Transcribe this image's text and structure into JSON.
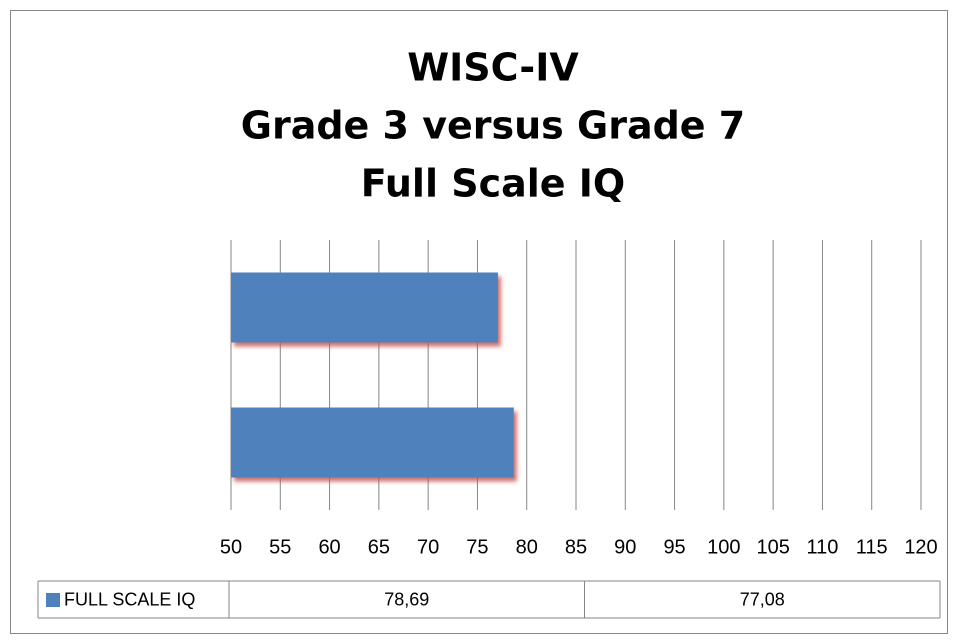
{
  "chart_data": {
    "type": "bar",
    "orientation": "horizontal",
    "title": [
      "WISC-IV",
      "Grade 3 versus Grade 7",
      "Full Scale IQ"
    ],
    "categories": [
      null,
      null
    ],
    "series": [
      {
        "name": "FULL SCALE IQ",
        "color": "#4f81bd",
        "values": [
          78.69,
          77.08
        ],
        "value_labels": [
          "78,69",
          "77,08"
        ]
      }
    ],
    "xlim": [
      50,
      120
    ],
    "xticks": [
      50,
      55,
      60,
      65,
      70,
      75,
      80,
      85,
      90,
      95,
      100,
      105,
      110,
      115,
      120
    ],
    "grid": true,
    "data_table": true
  }
}
